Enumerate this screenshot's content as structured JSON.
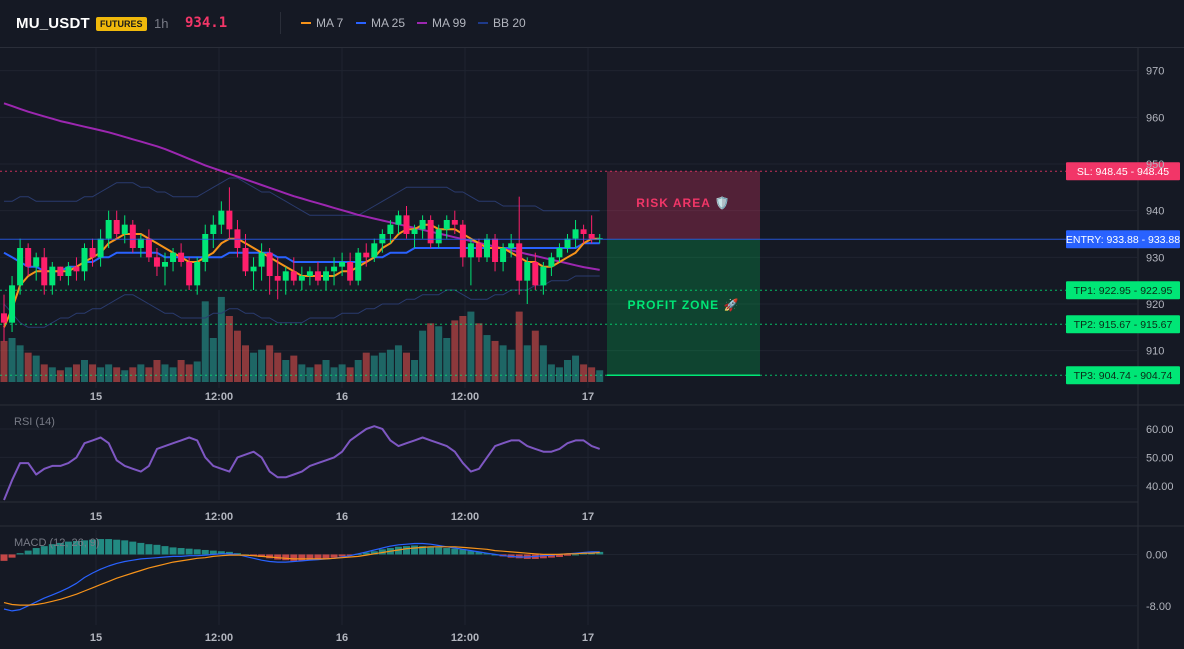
{
  "header": {
    "symbol": "MU_USDT",
    "badge": "FUTURES",
    "timeframe": "1h",
    "last_price": "934.1",
    "legend": [
      {
        "label": "MA 7",
        "color": "#f7931a"
      },
      {
        "label": "MA 25",
        "color": "#2962ff"
      },
      {
        "label": "MA 99",
        "color": "#9c27b0"
      },
      {
        "label": "BB 20",
        "color": "#1e3a8a"
      }
    ]
  },
  "colors": {
    "up": "#26a69a",
    "down": "#ef5350",
    "up_candle": "#00e676",
    "down_candle": "#ff1f6b",
    "entry": "#2962ff",
    "sl": "#f23668",
    "tp": "#00e676"
  },
  "chart_data": [
    {
      "type": "candlestick",
      "pane": "price",
      "ylim": [
        902,
        974
      ],
      "y_ticks": [
        970,
        960,
        950,
        940,
        930,
        920,
        910
      ],
      "x_ticks": [
        "15",
        "12:00",
        "16",
        "12:00",
        "17"
      ],
      "candles": [
        [
          918,
          922,
          912,
          916
        ],
        [
          916,
          926,
          914,
          924
        ],
        [
          924,
          934,
          922,
          932
        ],
        [
          932,
          933,
          926,
          928
        ],
        [
          928,
          931,
          925,
          930
        ],
        [
          930,
          932,
          922,
          924
        ],
        [
          924,
          929,
          922,
          928
        ],
        [
          928,
          928,
          925,
          926
        ],
        [
          926,
          929,
          924,
          928
        ],
        [
          928,
          930,
          925,
          927
        ],
        [
          927,
          933,
          925,
          932
        ],
        [
          932,
          934,
          928,
          930
        ],
        [
          930,
          936,
          928,
          934
        ],
        [
          934,
          940,
          932,
          938
        ],
        [
          938,
          940,
          934,
          935
        ],
        [
          935,
          939,
          933,
          937
        ],
        [
          937,
          938,
          931,
          932
        ],
        [
          932,
          935,
          930,
          934
        ],
        [
          934,
          936,
          929,
          930
        ],
        [
          930,
          932,
          926,
          928
        ],
        [
          928,
          931,
          924,
          929
        ],
        [
          929,
          932,
          927,
          931
        ],
        [
          931,
          933,
          928,
          929
        ],
        [
          929,
          930,
          923,
          924
        ],
        [
          924,
          930,
          922,
          929
        ],
        [
          929,
          937,
          927,
          935
        ],
        [
          935,
          939,
          932,
          937
        ],
        [
          937,
          942,
          935,
          940
        ],
        [
          940,
          945,
          934,
          936
        ],
        [
          936,
          938,
          930,
          932
        ],
        [
          932,
          935,
          926,
          927
        ],
        [
          927,
          930,
          923,
          928
        ],
        [
          928,
          933,
          925,
          931
        ],
        [
          931,
          932,
          922,
          926
        ],
        [
          926,
          930,
          921,
          925
        ],
        [
          925,
          928,
          922,
          927
        ],
        [
          927,
          930,
          924,
          925
        ],
        [
          925,
          928,
          923,
          926
        ],
        [
          926,
          928,
          924,
          927
        ],
        [
          927,
          929,
          924,
          925
        ],
        [
          925,
          928,
          923,
          927
        ],
        [
          927,
          930,
          924,
          928
        ],
        [
          928,
          931,
          926,
          929
        ],
        [
          929,
          931,
          924,
          925
        ],
        [
          925,
          932,
          924,
          931
        ],
        [
          931,
          933,
          928,
          930
        ],
        [
          930,
          934,
          929,
          933
        ],
        [
          933,
          936,
          931,
          935
        ],
        [
          935,
          938,
          933,
          937
        ],
        [
          937,
          940,
          935,
          939
        ],
        [
          939,
          941,
          934,
          935
        ],
        [
          935,
          937,
          932,
          936
        ],
        [
          936,
          939,
          934,
          938
        ],
        [
          938,
          939,
          932,
          933
        ],
        [
          933,
          937,
          932,
          936
        ],
        [
          936,
          939,
          934,
          938
        ],
        [
          938,
          940,
          935,
          937
        ],
        [
          937,
          938,
          928,
          930
        ],
        [
          930,
          934,
          924,
          933
        ],
        [
          933,
          934,
          929,
          930
        ],
        [
          930,
          935,
          929,
          934
        ],
        [
          934,
          935,
          927,
          929
        ],
        [
          929,
          933,
          927,
          932
        ],
        [
          932,
          935,
          930,
          933
        ],
        [
          933,
          943,
          922,
          925
        ],
        [
          925,
          930,
          920,
          929
        ],
        [
          929,
          931,
          923,
          924
        ],
        [
          924,
          929,
          922,
          928
        ],
        [
          928,
          931,
          926,
          930
        ],
        [
          930,
          933,
          929,
          932
        ],
        [
          932,
          935,
          931,
          934
        ],
        [
          934,
          938,
          932,
          936
        ],
        [
          936,
          937,
          933,
          935
        ],
        [
          935,
          939,
          933,
          934
        ],
        [
          934,
          935,
          933,
          934.1
        ]
      ],
      "ma7": [
        915,
        919,
        924,
        926,
        927,
        927,
        927,
        927,
        927,
        928,
        929,
        930,
        931,
        933,
        934,
        935,
        935,
        935,
        934,
        933,
        932,
        931,
        930,
        929,
        929,
        930,
        931,
        933,
        934,
        934,
        933,
        932,
        931,
        930,
        929,
        928,
        927,
        926,
        926,
        926,
        926,
        926,
        927,
        927,
        928,
        929,
        930,
        932,
        933,
        935,
        936,
        936,
        937,
        937,
        936,
        936,
        936,
        935,
        934,
        933,
        932,
        932,
        932,
        931,
        930,
        929,
        929,
        928,
        928,
        929,
        930,
        931,
        933,
        934,
        934
      ],
      "ma25": [
        931,
        930,
        929,
        928,
        928,
        927,
        927,
        927,
        928,
        928,
        929,
        929,
        930,
        930,
        931,
        931,
        931,
        931,
        931,
        931,
        930,
        930,
        930,
        930,
        930,
        930,
        930,
        930,
        931,
        931,
        931,
        931,
        931,
        931,
        930,
        930,
        929,
        929,
        929,
        929,
        929,
        929,
        929,
        929,
        929,
        929,
        930,
        930,
        931,
        931,
        931,
        932,
        932,
        932,
        932,
        932,
        932,
        932,
        932,
        932,
        932,
        932,
        932,
        932,
        932,
        932,
        932,
        932,
        932,
        932,
        932,
        932,
        933,
        933,
        933
      ],
      "ma99": [
        963,
        962.4,
        961.8,
        961.2,
        960.7,
        960.2,
        959.7,
        959.2,
        958.8,
        958.4,
        958,
        957.6,
        957.2,
        956.8,
        956.3,
        955.8,
        955.3,
        954.8,
        954.3,
        953.8,
        953.2,
        952.5,
        951.8,
        951.1,
        950.4,
        949.7,
        949.1,
        948.5,
        947.9,
        947.3,
        946.7,
        946.1,
        945.5,
        944.9,
        944.3,
        943.7,
        943.1,
        942.6,
        942.1,
        941.6,
        941.1,
        940.6,
        940.1,
        939.6,
        939.1,
        938.7,
        938.3,
        937.9,
        937.5,
        937.1,
        936.7,
        936.3,
        935.9,
        935.5,
        935.1,
        934.7,
        934.3,
        933.9,
        933.5,
        933.1,
        932.7,
        932.3,
        931.9,
        931.5,
        931.1,
        930.7,
        930.3,
        929.9,
        929.5,
        929.1,
        928.7,
        928.3,
        927.9,
        927.6,
        927.3
      ],
      "bb_upper": [
        942,
        942,
        943,
        943,
        942,
        942,
        942,
        942,
        942,
        942,
        943,
        943,
        944,
        945,
        946,
        946,
        946,
        945,
        945,
        944,
        944,
        943,
        943,
        943,
        943,
        944,
        945,
        946,
        947,
        947,
        946,
        945,
        944,
        944,
        943,
        942,
        941,
        940,
        939,
        939,
        939,
        939,
        939,
        939,
        939,
        940,
        941,
        942,
        943,
        944,
        945,
        945,
        945,
        945,
        945,
        945,
        944,
        944,
        943,
        942,
        942,
        942,
        941,
        941,
        941,
        941,
        941,
        940,
        940,
        940,
        940,
        940,
        940,
        940,
        940
      ],
      "bb_lower": [
        920,
        918,
        916,
        915,
        915,
        915,
        916,
        917,
        917,
        918,
        918,
        919,
        919,
        920,
        921,
        922,
        922,
        921,
        920,
        919,
        918,
        918,
        917,
        917,
        917,
        917,
        918,
        918,
        919,
        919,
        918,
        918,
        917,
        917,
        916,
        916,
        916,
        916,
        917,
        917,
        917,
        917,
        918,
        918,
        918,
        919,
        919,
        920,
        920,
        920,
        921,
        921,
        922,
        922,
        922,
        923,
        923,
        922,
        921,
        921,
        921,
        922,
        922,
        923,
        923,
        923,
        924,
        924,
        925,
        925,
        925,
        926,
        926,
        926,
        926
      ],
      "volume": [
        0.28,
        0.3,
        0.25,
        0.2,
        0.18,
        0.12,
        0.1,
        0.08,
        0.1,
        0.12,
        0.15,
        0.12,
        0.1,
        0.12,
        0.1,
        0.08,
        0.1,
        0.12,
        0.1,
        0.15,
        0.12,
        0.1,
        0.15,
        0.12,
        0.14,
        0.55,
        0.3,
        0.58,
        0.45,
        0.35,
        0.25,
        0.2,
        0.22,
        0.25,
        0.2,
        0.15,
        0.18,
        0.12,
        0.1,
        0.12,
        0.15,
        0.1,
        0.12,
        0.1,
        0.15,
        0.2,
        0.18,
        0.2,
        0.22,
        0.25,
        0.2,
        0.15,
        0.35,
        0.4,
        0.38,
        0.3,
        0.42,
        0.45,
        0.48,
        0.4,
        0.32,
        0.28,
        0.25,
        0.22,
        0.48,
        0.25,
        0.35,
        0.25,
        0.12,
        0.1,
        0.15,
        0.18,
        0.12,
        0.1,
        0.08
      ],
      "annotations": [
        {
          "name": "sl-line",
          "label": "SL: 948.45 - 948.45",
          "value": 948.45
        },
        {
          "name": "entry-line",
          "label": "ENTRY: 933.88 - 933.88",
          "value": 933.88
        },
        {
          "name": "tp1-line",
          "label": "TP1: 922.95 - 922.95",
          "value": 922.95
        },
        {
          "name": "tp2-line",
          "label": "TP2: 915.67 - 915.67",
          "value": 915.67
        },
        {
          "name": "tp3-line",
          "label": "TP3: 904.74 - 904.74",
          "value": 904.74
        }
      ],
      "zones": [
        {
          "name": "risk-area",
          "label": "RISK AREA 🛡️",
          "from": 933.88,
          "to": 948.45
        },
        {
          "name": "profit-zone",
          "label": "PROFIT ZONE 🚀",
          "from": 904.74,
          "to": 933.88
        }
      ]
    },
    {
      "type": "line",
      "pane": "rsi",
      "title": "RSI (14)",
      "ylim": [
        35,
        66
      ],
      "y_ticks": [
        60.0,
        50.0,
        40.0
      ],
      "x_ticks": [
        "15",
        "12:00",
        "16",
        "12:00",
        "17"
      ],
      "values": [
        35,
        42,
        48,
        48,
        44,
        46,
        47,
        47,
        48,
        50,
        55,
        56,
        57,
        55,
        49,
        47,
        46,
        45,
        47,
        53,
        54,
        55,
        56,
        57,
        56,
        50,
        47,
        46,
        45,
        50,
        51,
        52,
        50,
        45,
        43,
        43,
        44,
        45,
        47,
        48,
        49,
        50,
        52,
        56,
        58,
        60,
        61,
        60,
        56,
        54,
        55,
        56,
        57,
        56,
        55,
        54,
        52,
        48,
        45,
        46,
        50,
        54,
        55,
        56,
        56,
        54,
        53,
        52,
        52,
        53,
        55,
        56,
        56,
        54,
        53
      ]
    },
    {
      "type": "bar+line",
      "pane": "macd",
      "title": "MACD (12, 26, 9)",
      "ylim": [
        -11,
        3.5
      ],
      "y_ticks": [
        0.0,
        -8.0
      ],
      "x_ticks": [
        "15",
        "12:00",
        "16",
        "12:00",
        "17"
      ],
      "histogram": [
        -1.0,
        -0.5,
        0.2,
        0.6,
        1.0,
        1.3,
        1.6,
        1.8,
        2.0,
        2.1,
        2.2,
        2.3,
        2.4,
        2.4,
        2.3,
        2.2,
        2.0,
        1.8,
        1.6,
        1.5,
        1.3,
        1.1,
        1.0,
        0.9,
        0.8,
        0.7,
        0.6,
        0.5,
        0.4,
        0.2,
        0.0,
        -0.2,
        -0.4,
        -0.6,
        -0.8,
        -0.9,
        -1.0,
        -1.0,
        -0.9,
        -0.8,
        -0.7,
        -0.5,
        -0.3,
        -0.1,
        0.1,
        0.3,
        0.5,
        0.8,
        1.0,
        1.2,
        1.3,
        1.4,
        1.3,
        1.2,
        1.1,
        1.0,
        0.9,
        0.8,
        0.6,
        0.4,
        0.2,
        0.0,
        -0.3,
        -0.5,
        -0.6,
        -0.7,
        -0.7,
        -0.6,
        -0.5,
        -0.4,
        -0.2,
        0.0,
        0.2,
        0.3,
        0.4
      ],
      "macd": [
        -8.5,
        -8.8,
        -8.6,
        -8.0,
        -7.4,
        -6.8,
        -6.3,
        -5.8,
        -5.2,
        -4.5,
        -3.6,
        -2.9,
        -2.3,
        -1.8,
        -1.4,
        -1.1,
        -0.9,
        -0.7,
        -0.6,
        -0.5,
        -0.4,
        -0.3,
        -0.3,
        -0.2,
        -0.2,
        -0.1,
        0.0,
        0.1,
        0.1,
        0.0,
        -0.3,
        -0.6,
        -0.9,
        -1.1,
        -1.2,
        -1.2,
        -1.1,
        -1.0,
        -0.9,
        -0.8,
        -0.7,
        -0.6,
        -0.4,
        -0.2,
        0.1,
        0.4,
        0.7,
        1.0,
        1.3,
        1.5,
        1.6,
        1.7,
        1.7,
        1.6,
        1.4,
        1.2,
        1.0,
        0.8,
        0.6,
        0.4,
        0.2,
        0.0,
        -0.2,
        -0.3,
        -0.4,
        -0.4,
        -0.3,
        -0.2,
        -0.1,
        0.0,
        0.1,
        0.2,
        0.3,
        0.4,
        0.4
      ],
      "signal": [
        -7.5,
        -7.8,
        -7.9,
        -7.9,
        -7.8,
        -7.6,
        -7.3,
        -7.0,
        -6.6,
        -6.2,
        -5.7,
        -5.2,
        -4.7,
        -4.2,
        -3.7,
        -3.3,
        -2.9,
        -2.5,
        -2.1,
        -1.8,
        -1.5,
        -1.2,
        -1.0,
        -0.8,
        -0.6,
        -0.5,
        -0.3,
        -0.2,
        -0.1,
        -0.1,
        -0.1,
        -0.2,
        -0.3,
        -0.4,
        -0.5,
        -0.6,
        -0.7,
        -0.7,
        -0.7,
        -0.7,
        -0.7,
        -0.6,
        -0.5,
        -0.4,
        -0.3,
        -0.1,
        0.1,
        0.3,
        0.5,
        0.7,
        0.9,
        1.0,
        1.1,
        1.2,
        1.2,
        1.2,
        1.2,
        1.1,
        1.0,
        0.9,
        0.8,
        0.6,
        0.5,
        0.4,
        0.3,
        0.2,
        0.1,
        0.0,
        0.0,
        0.0,
        0.1,
        0.1,
        0.2,
        0.2,
        0.3
      ]
    }
  ]
}
